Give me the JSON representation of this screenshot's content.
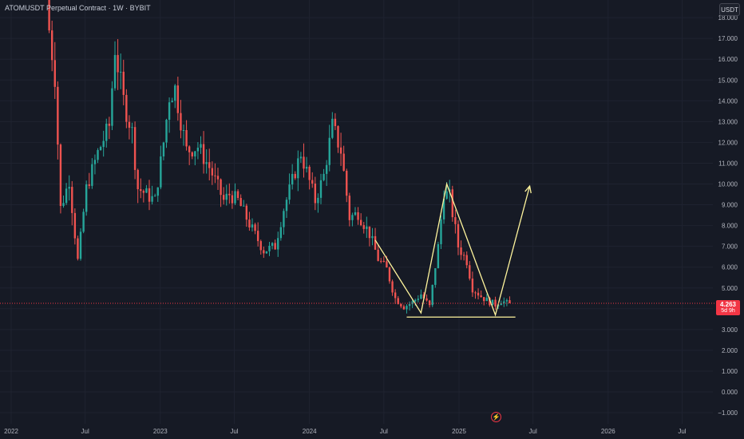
{
  "header": {
    "symbol": "ATOMUSDT Perpetual Contract",
    "interval": "1W",
    "exchange": "BYBIT"
  },
  "toolbar": {
    "currency_label": "USDT"
  },
  "price_tag": {
    "price": "4.263",
    "countdown": "5d 9h"
  },
  "icons": {
    "events": "lightning-icon"
  },
  "colors": {
    "background": "#161a25",
    "up": "#26a69a",
    "down": "#ef5350",
    "pattern": "#fff59d",
    "axis_text": "#b2b5be",
    "grid": "#1f2330",
    "current_price": "#f23645"
  },
  "chart_data": {
    "type": "candlestick",
    "title": "ATOMUSDT Perpetual Contract · 1W · BYBIT",
    "xlabel": "",
    "ylabel": "",
    "ylim": [
      -1.1,
      18.5
    ],
    "y_ticks": [
      "−1.000",
      "0.000",
      "1.000",
      "2.000",
      "3.000",
      "4.000",
      "5.000",
      "6.000",
      "7.000",
      "8.000",
      "9.000",
      "10.000",
      "11.000",
      "12.000",
      "13.000",
      "14.000",
      "15.000",
      "16.000",
      "17.000",
      "18.000"
    ],
    "x_ticks": [
      {
        "label": "2022",
        "date": "2022-01-01"
      },
      {
        "label": "Jul",
        "date": "2022-07-01"
      },
      {
        "label": "2023",
        "date": "2023-01-01"
      },
      {
        "label": "Jul",
        "date": "2023-07-01"
      },
      {
        "label": "2024",
        "date": "2024-01-01"
      },
      {
        "label": "Jul",
        "date": "2024-07-01"
      },
      {
        "label": "2025",
        "date": "2025-01-01"
      },
      {
        "label": "Jul",
        "date": "2025-07-01"
      },
      {
        "label": "2026",
        "date": "2026-01-01"
      },
      {
        "label": "Jul",
        "date": "2026-07-01"
      }
    ],
    "grid": true,
    "last_price": 4.263,
    "price_path": [
      [
        "2022-04-04",
        18.5
      ],
      [
        "2022-04-25",
        15.2
      ],
      [
        "2022-05-09",
        8.8
      ],
      [
        "2022-05-30",
        10.2
      ],
      [
        "2022-06-20",
        6.3
      ],
      [
        "2022-07-11",
        9.8
      ],
      [
        "2022-08-08",
        11.5
      ],
      [
        "2022-09-05",
        12.8
      ],
      [
        "2022-09-19",
        16.5
      ],
      [
        "2022-10-10",
        14.0
      ],
      [
        "2022-10-31",
        12.5
      ],
      [
        "2022-11-14",
        9.8
      ],
      [
        "2022-12-05",
        9.5
      ],
      [
        "2022-12-26",
        9.2
      ],
      [
        "2023-01-16",
        12.0
      ],
      [
        "2023-01-30",
        14.2
      ],
      [
        "2023-02-13",
        14.6
      ],
      [
        "2023-03-13",
        11.6
      ],
      [
        "2023-04-10",
        11.8
      ],
      [
        "2023-05-08",
        10.8
      ],
      [
        "2023-06-12",
        9.2
      ],
      [
        "2023-06-26",
        9.5
      ],
      [
        "2023-07-17",
        9.2
      ],
      [
        "2023-08-21",
        7.8
      ],
      [
        "2023-09-18",
        6.8
      ],
      [
        "2023-10-16",
        7.0
      ],
      [
        "2023-11-06",
        8.8
      ],
      [
        "2023-12-04",
        10.6
      ],
      [
        "2023-12-18",
        11.5
      ],
      [
        "2024-01-22",
        9.2
      ],
      [
        "2024-02-12",
        10.4
      ],
      [
        "2024-03-04",
        12.8
      ],
      [
        "2024-03-25",
        11.6
      ],
      [
        "2024-04-15",
        8.4
      ],
      [
        "2024-05-06",
        8.6
      ],
      [
        "2024-06-03",
        7.6
      ],
      [
        "2024-06-24",
        6.4
      ],
      [
        "2024-07-15",
        5.9
      ],
      [
        "2024-08-05",
        4.5
      ],
      [
        "2024-08-26",
        4.1
      ],
      [
        "2024-09-16",
        4.3
      ],
      [
        "2024-10-07",
        4.7
      ],
      [
        "2024-10-28",
        4.1
      ],
      [
        "2024-11-18",
        7.0
      ],
      [
        "2024-12-02",
        9.6
      ],
      [
        "2024-12-16",
        9.4
      ],
      [
        "2025-01-06",
        7.0
      ],
      [
        "2025-01-27",
        6.3
      ],
      [
        "2025-02-10",
        5.0
      ],
      [
        "2025-03-03",
        4.6
      ],
      [
        "2025-03-17",
        4.4
      ],
      [
        "2025-04-07",
        4.2
      ],
      [
        "2025-04-21",
        4.4
      ],
      [
        "2025-05-05",
        4.263
      ]
    ],
    "pattern_lines": [
      {
        "points": [
          [
            "2024-06-10",
            7.3
          ],
          [
            "2024-09-30",
            3.8
          ],
          [
            "2024-12-02",
            10.0
          ],
          [
            "2025-03-31",
            3.7
          ],
          [
            "2025-06-23",
            9.9
          ]
        ],
        "arrow": true
      },
      {
        "points": [
          [
            "2024-08-26",
            3.6
          ],
          [
            "2025-05-19",
            3.6
          ]
        ],
        "arrow": false
      }
    ]
  }
}
